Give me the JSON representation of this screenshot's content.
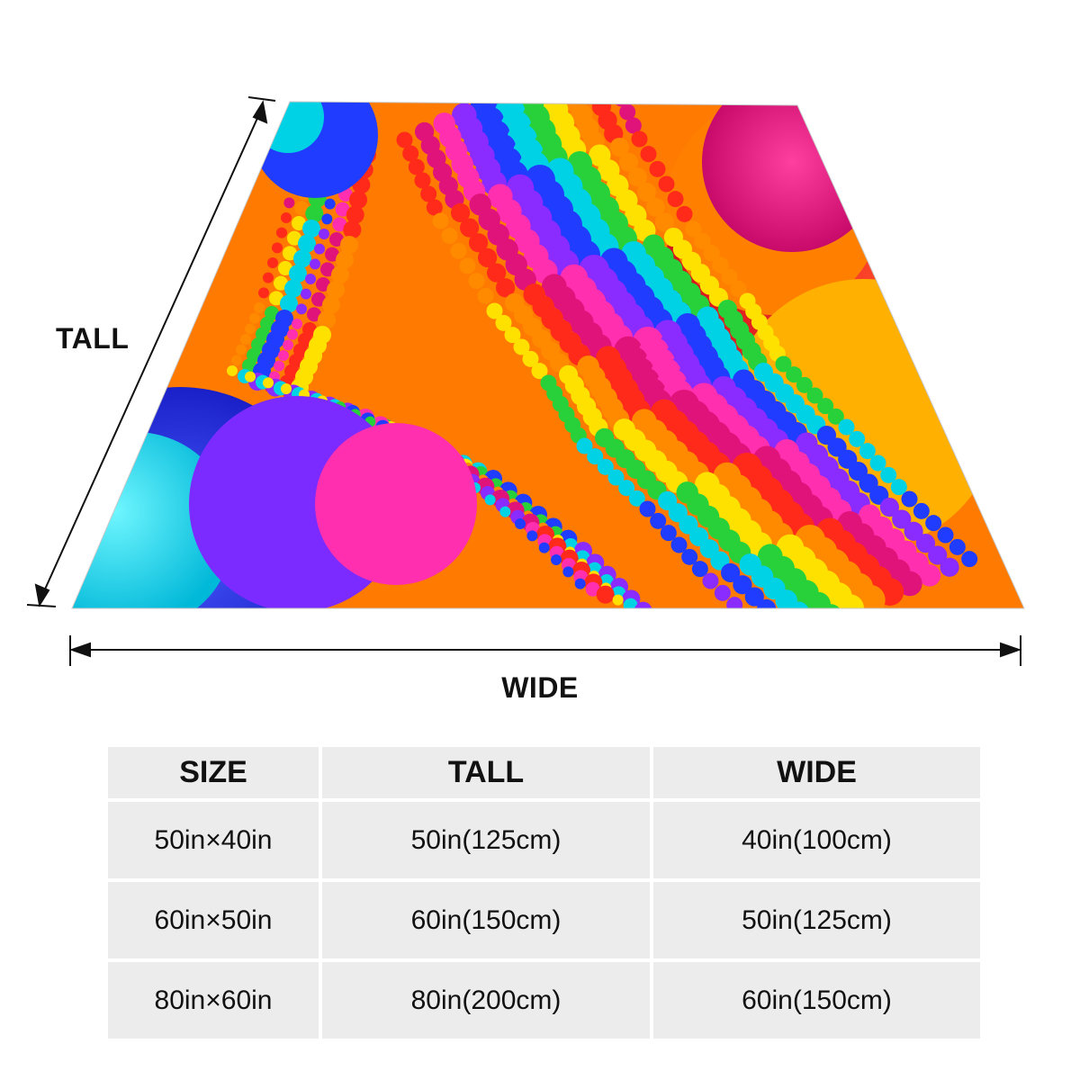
{
  "product": {
    "pattern": "rainbow-fractal-blanket",
    "colors": [
      "#e0137a",
      "#ff2a1a",
      "#ff8a00",
      "#ffe100",
      "#28d13a",
      "#00d2e6",
      "#1f3cff",
      "#8a2bff",
      "#ff2fb0"
    ]
  },
  "dimensions": {
    "tall_label": "TALL",
    "wide_label": "WIDE"
  },
  "size_table": {
    "headers": [
      "SIZE",
      "TALL",
      "WIDE"
    ],
    "rows": [
      [
        "50in×40in",
        "50in(125cm)",
        "40in(100cm)"
      ],
      [
        "60in×50in",
        "60in(150cm)",
        "50in(125cm)"
      ],
      [
        "80in×60in",
        "80in(200cm)",
        "60in(150cm)"
      ]
    ]
  }
}
